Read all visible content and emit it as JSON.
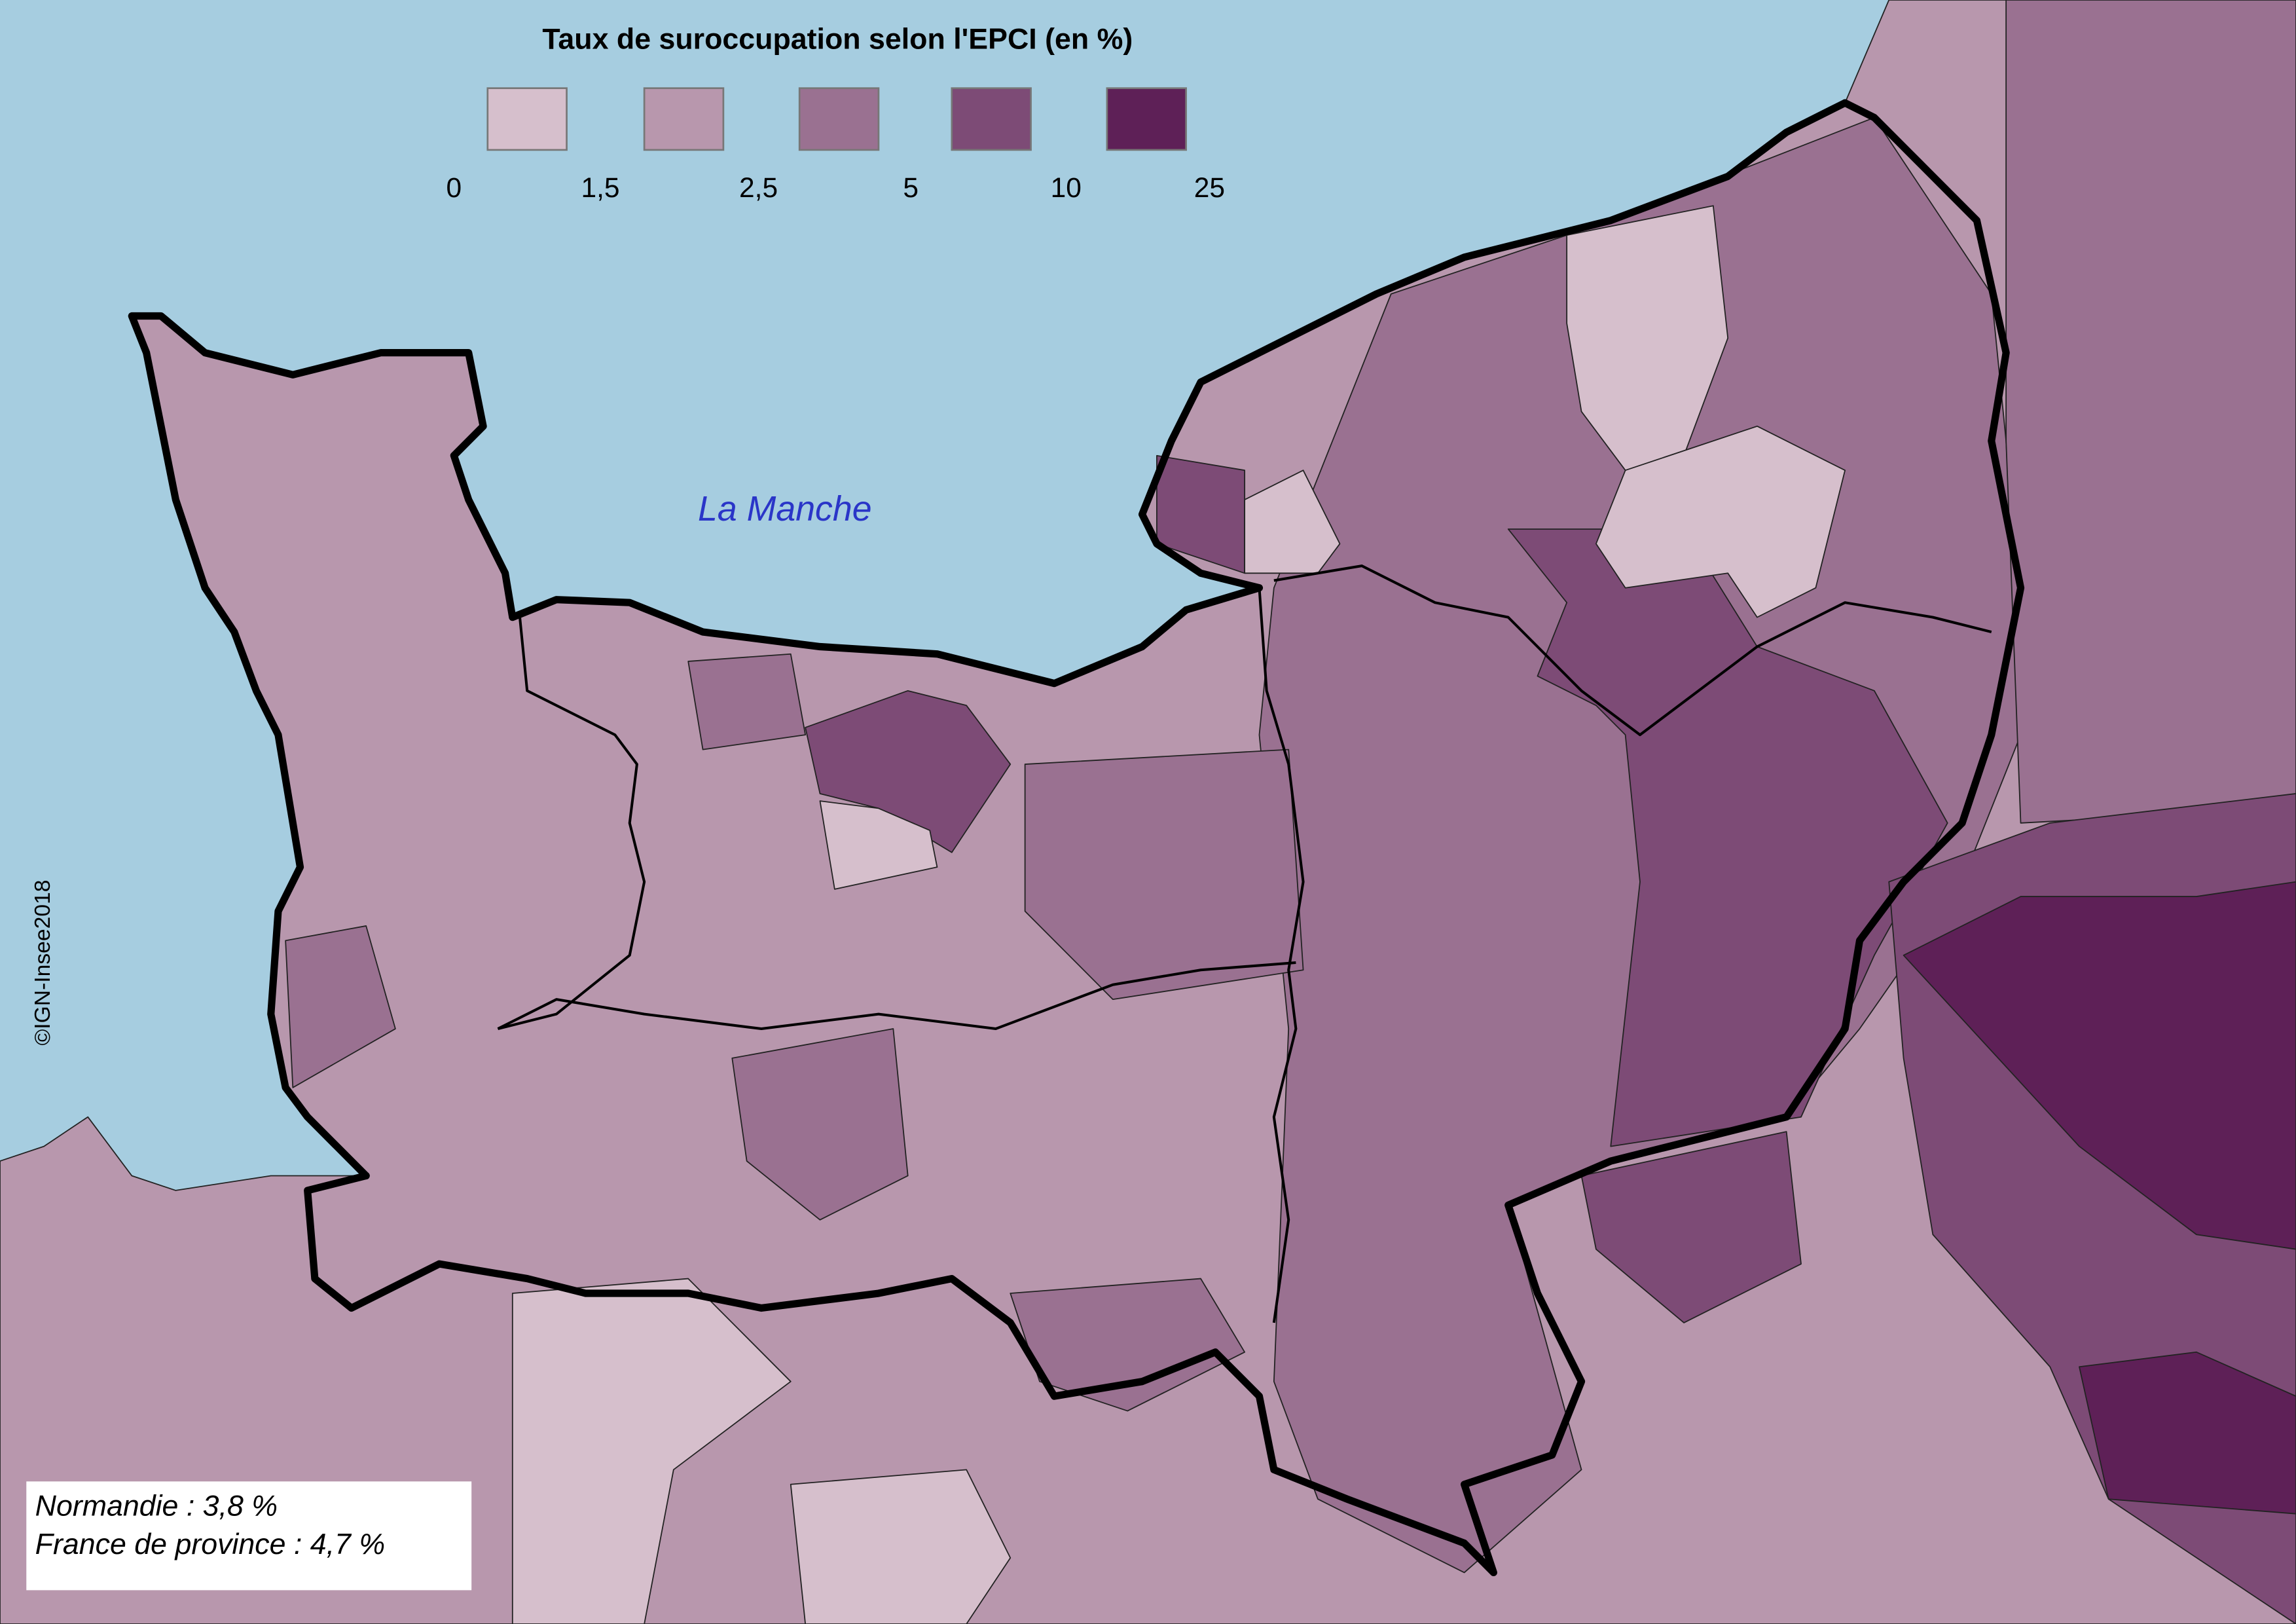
{
  "legend": {
    "title": "Taux de suroccupation selon l'EPCI (en %)",
    "colors": [
      "#d6bfcc",
      "#b897ad",
      "#9a7191",
      "#7d4b76",
      "#5e2057"
    ],
    "breaks": [
      "0",
      "1,5",
      "2,5",
      "5",
      "10",
      "25"
    ]
  },
  "sea_label": "La Manche",
  "notes": [
    "Normandie : 3,8 %",
    "France de province : 4,7 %"
  ],
  "credit": "©IGN-Insee2018"
}
